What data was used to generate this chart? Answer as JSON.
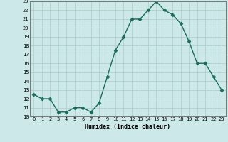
{
  "xlabel": "Humidex (Indice chaleur)",
  "x": [
    0,
    1,
    2,
    3,
    4,
    5,
    6,
    7,
    8,
    9,
    10,
    11,
    12,
    13,
    14,
    15,
    16,
    17,
    18,
    19,
    20,
    21,
    22,
    23
  ],
  "y": [
    12.5,
    12.0,
    12.0,
    10.5,
    10.5,
    11.0,
    11.0,
    10.5,
    11.5,
    14.5,
    17.5,
    19.0,
    21.0,
    21.0,
    22.0,
    23.0,
    22.0,
    21.5,
    20.5,
    18.5,
    16.0,
    16.0,
    14.5,
    13.0
  ],
  "ylim": [
    10,
    23
  ],
  "xlim_min": -0.5,
  "xlim_max": 23.5,
  "yticks": [
    10,
    11,
    12,
    13,
    14,
    15,
    16,
    17,
    18,
    19,
    20,
    21,
    22,
    23
  ],
  "xticks": [
    0,
    1,
    2,
    3,
    4,
    5,
    6,
    7,
    8,
    9,
    10,
    11,
    12,
    13,
    14,
    15,
    16,
    17,
    18,
    19,
    20,
    21,
    22,
    23
  ],
  "line_color": "#1a6b5a",
  "bg_color": "#cce8e8",
  "grid_color": "#b0d0d0",
  "marker": "D",
  "markersize": 2.5,
  "linewidth": 1.0
}
